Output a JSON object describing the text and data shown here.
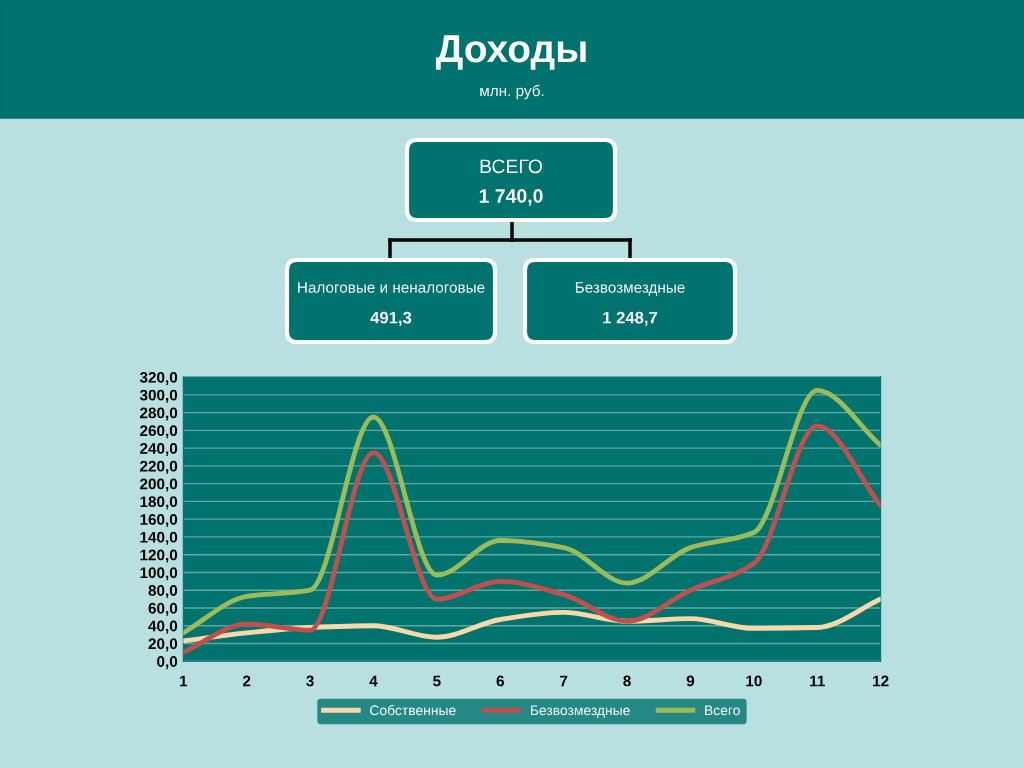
{
  "chart_data": [
    {
      "type": "other",
      "title": "Доходы",
      "subtitle": "млн. руб.",
      "annotations": [
        "ВСЕГО",
        "1 740,0",
        "Налоговые и неналоговые",
        "491,3",
        "Безвозмездные",
        "1 248,7"
      ]
    },
    {
      "type": "line",
      "x": [
        1,
        2,
        3,
        4,
        5,
        6,
        7,
        8,
        9,
        10,
        11,
        12
      ],
      "xlim": [
        1,
        12
      ],
      "xticks": [
        1,
        2,
        3,
        4,
        5,
        6,
        7,
        8,
        9,
        10,
        11,
        12
      ],
      "ylim": [
        0,
        320
      ],
      "yticks": [
        {
          "value": 0,
          "label": "0,0"
        },
        {
          "value": 20,
          "label": "20,0"
        },
        {
          "value": 40,
          "label": "40,0"
        },
        {
          "value": 60,
          "label": "60,0"
        },
        {
          "value": 80,
          "label": "80,0"
        },
        {
          "value": 100,
          "label": "100,0"
        },
        {
          "value": 120,
          "label": "120,0"
        },
        {
          "value": 140,
          "label": "140,0"
        },
        {
          "value": 160,
          "label": "160,0"
        },
        {
          "value": 180,
          "label": "180,0"
        },
        {
          "value": 200,
          "label": "200,0"
        },
        {
          "value": 220,
          "label": "220,0"
        },
        {
          "value": 240,
          "label": "240,0"
        },
        {
          "value": 260,
          "label": "260,0"
        },
        {
          "value": 280,
          "label": "280,0"
        },
        {
          "value": 300,
          "label": "300,0"
        },
        {
          "value": 320,
          "label": "320,0"
        }
      ],
      "grid": "y",
      "legend": "bottom",
      "marker": "none",
      "line_style": "solid",
      "series": [
        {
          "name": "Собственные",
          "color": "#f8d8a8",
          "values": [
            23,
            32,
            38,
            40,
            27,
            47,
            55,
            45,
            48,
            37,
            38,
            70
          ]
        },
        {
          "name": "Безвозмездные",
          "color": "#c0504d",
          "values": [
            10,
            42,
            35,
            235,
            70,
            90,
            75,
            45,
            80,
            110,
            265,
            175
          ]
        },
        {
          "name": "Всего",
          "color": "#9bbb59",
          "values": [
            32,
            73,
            80,
            275,
            97,
            136,
            128,
            88,
            128,
            145,
            305,
            243
          ]
        }
      ]
    }
  ]
}
